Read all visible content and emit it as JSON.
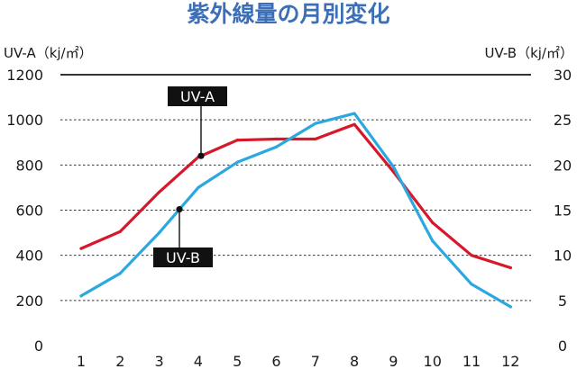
{
  "chart_data": {
    "type": "line",
    "title": "紫外線量の月別変化",
    "ylabel_left": "UV-A（kj/㎡）",
    "ylabel_right": "UV-B（kj/㎡）",
    "categories": [
      "1",
      "2",
      "3",
      "4",
      "5",
      "6",
      "7",
      "8",
      "9",
      "10",
      "11",
      "12"
    ],
    "ylim_left": [
      0,
      1200
    ],
    "ylim_right": [
      0,
      30
    ],
    "yticks_left": [
      "0",
      "200",
      "400",
      "600",
      "800",
      "1000",
      "1200"
    ],
    "yticks_right": [
      "0",
      "5",
      "10",
      "15",
      "20",
      "25",
      "30"
    ],
    "grid": true,
    "series": [
      {
        "name": "UV-A",
        "axis": "left",
        "color": "#d7182a",
        "values": [
          430,
          505,
          680,
          835,
          910,
          915,
          915,
          980,
          770,
          545,
          400,
          345
        ]
      },
      {
        "name": "UV-B",
        "axis": "right",
        "color": "#2ba8e0",
        "values": [
          5.5,
          8.0,
          12.5,
          17.5,
          20.3,
          22.0,
          24.6,
          25.7,
          19.8,
          11.6,
          6.8,
          4.3
        ]
      }
    ]
  }
}
